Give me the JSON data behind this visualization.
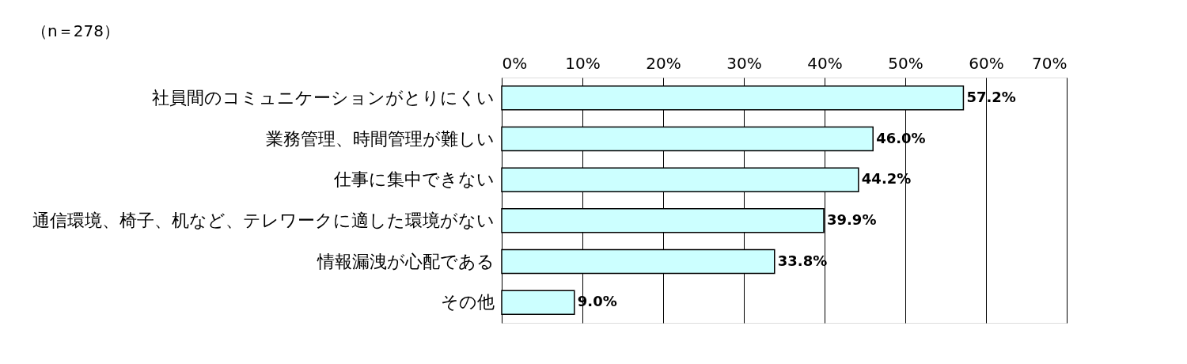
{
  "chart_data": {
    "type": "bar",
    "orientation": "horizontal",
    "annotations": [
      "（n＝278）"
    ],
    "categories": [
      "社員間のコミュニケーションがとりにくい",
      "業務管理、時間管理が難しい",
      "仕事に集中できない",
      "通信環境、椅子、机など、テレワークに適した環境がない",
      "情報漏洩が心配である",
      "その他"
    ],
    "values": [
      57.2,
      46.0,
      44.2,
      39.9,
      33.8,
      9.0
    ],
    "value_labels": [
      "57.2%",
      "46.0%",
      "44.2%",
      "39.9%",
      "33.8%",
      "9.0%"
    ],
    "color": "#ccffff",
    "xlim": [
      0,
      70
    ],
    "xticks": [
      {
        "value": 0,
        "label": "0%"
      },
      {
        "value": 10,
        "label": "10%"
      },
      {
        "value": 20,
        "label": "20%"
      },
      {
        "value": 30,
        "label": "30%"
      },
      {
        "value": 40,
        "label": "40%"
      },
      {
        "value": 50,
        "label": "50%"
      },
      {
        "value": 60,
        "label": "60%"
      },
      {
        "value": 70,
        "label": "70%"
      }
    ],
    "grid": "x"
  }
}
